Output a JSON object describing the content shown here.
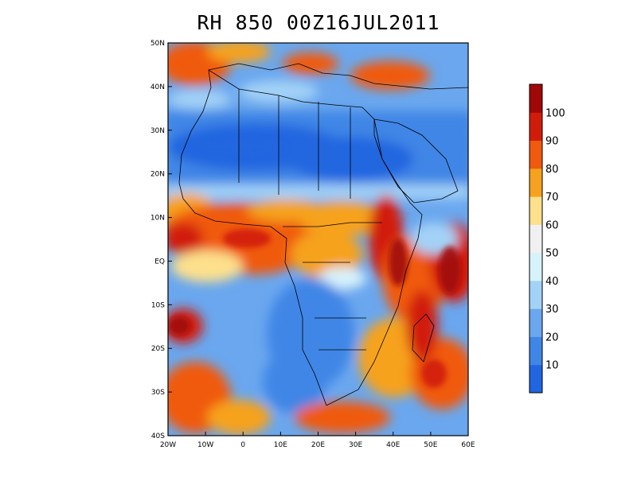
{
  "title": "RH 850 00Z16JUL2011",
  "map": {
    "lon_range": [
      -20,
      60
    ],
    "lat_range": [
      -40,
      50
    ],
    "lon_ticks": [
      "20W",
      "10W",
      "0",
      "10E",
      "20E",
      "30E",
      "40E",
      "50E",
      "60E"
    ],
    "lat_ticks": [
      "50N",
      "40N",
      "30N",
      "20N",
      "10N",
      "EQ",
      "10S",
      "20S",
      "30S",
      "40S"
    ]
  },
  "colorbar": {
    "labels": [
      "10",
      "20",
      "30",
      "40",
      "50",
      "60",
      "70",
      "80",
      "90",
      "100"
    ],
    "colors": [
      "#2166e0",
      "#3f86e6",
      "#6aa7ee",
      "#a3d2f7",
      "#d8f2fb",
      "#f0f0f0",
      "#fde08c",
      "#f6a21e",
      "#f05a0e",
      "#d11c0c",
      "#a00808"
    ]
  }
}
